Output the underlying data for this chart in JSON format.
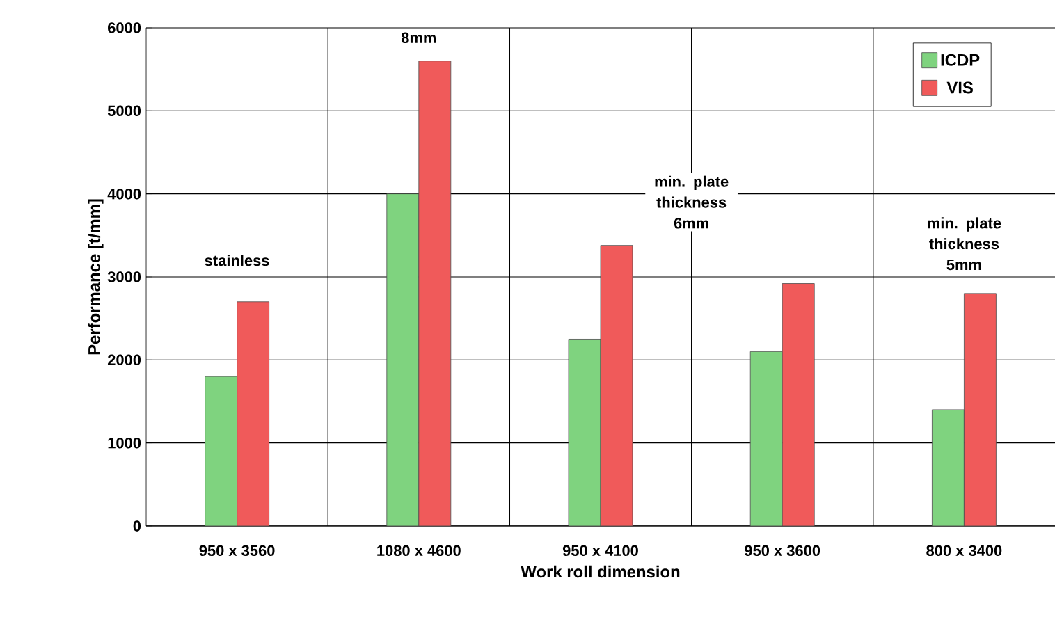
{
  "chart_data": {
    "type": "bar",
    "xlabel": "Work roll dimension",
    "ylabel": "Performance [t/mm]",
    "categories": [
      "950 x 3560",
      "1080 x 4600",
      "950 x 4100",
      "950 x 3600",
      "800 x 3400"
    ],
    "series": [
      {
        "name": "ICDP",
        "color": "#7fd37f",
        "values": [
          1800,
          4000,
          2250,
          2100,
          1400
        ]
      },
      {
        "name": "VIS",
        "color": "#f05a5a",
        "values": [
          2700,
          5600,
          3380,
          2920,
          2800
        ]
      }
    ],
    "ylim": [
      0,
      6000
    ],
    "yticks": [
      0,
      1000,
      2000,
      3000,
      4000,
      5000,
      6000
    ],
    "grid": true,
    "legend": "top right",
    "annotations": [
      "stainless",
      "8mm",
      "min. plate thickness 6mm",
      "min. plate thickness 5mm"
    ]
  }
}
